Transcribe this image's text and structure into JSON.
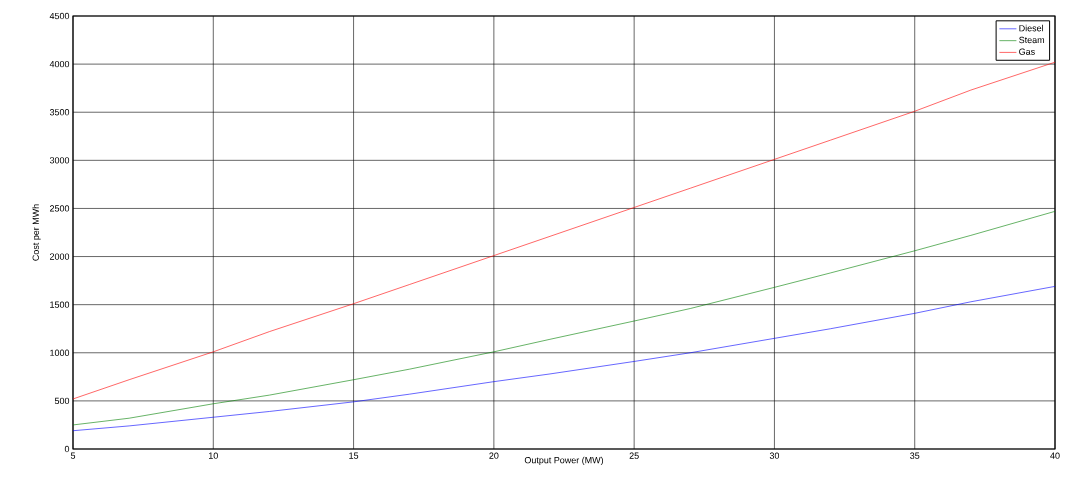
{
  "chart_data": {
    "type": "line",
    "xlabel": "Output Power (MW)",
    "ylabel": "Cost per MWh",
    "x": [
      5,
      7,
      10,
      12,
      15,
      17,
      20,
      22,
      25,
      27,
      30,
      32,
      35,
      37,
      40
    ],
    "series": [
      {
        "name": "Diesel",
        "color": "#0000ff",
        "values": [
          190,
          240,
          330,
          390,
          490,
          570,
          700,
          780,
          910,
          1000,
          1150,
          1250,
          1410,
          1530,
          1690
        ]
      },
      {
        "name": "Steam",
        "color": "#008000",
        "values": [
          250,
          320,
          470,
          560,
          720,
          830,
          1010,
          1140,
          1330,
          1460,
          1680,
          1830,
          2060,
          2220,
          2470
        ]
      },
      {
        "name": "Gas",
        "color": "#ff0000",
        "values": [
          520,
          720,
          1010,
          1220,
          1510,
          1710,
          2010,
          2210,
          2510,
          2710,
          3010,
          3210,
          3510,
          3730,
          4020
        ]
      }
    ],
    "xlim": [
      5,
      40
    ],
    "ylim": [
      0,
      4500
    ],
    "xticks": [
      5,
      10,
      15,
      20,
      25,
      30,
      35,
      40
    ],
    "yticks": [
      0,
      500,
      1000,
      1500,
      2000,
      2500,
      3000,
      3500,
      4000,
      4500
    ],
    "grid": true,
    "legend": "top right",
    "marker": "none",
    "line_style": "solid"
  }
}
